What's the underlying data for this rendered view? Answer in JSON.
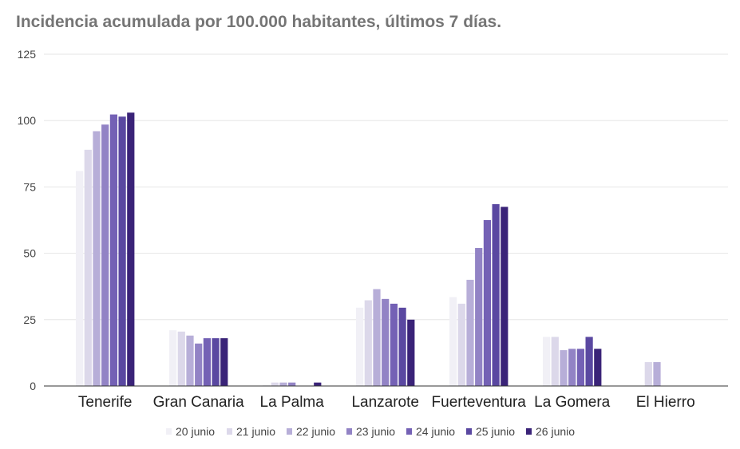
{
  "chart_data": {
    "type": "bar",
    "title": "Incidencia acumulada por 100.000 habitantes, últimos 7 días.",
    "categories": [
      "Tenerife",
      "Gran Canaria",
      "La Palma",
      "Lanzarote",
      "Fuerteventura",
      "La Gomera",
      "El Hierro"
    ],
    "ylim": [
      0,
      125
    ],
    "yticks": [
      "0",
      "25",
      "50",
      "75",
      "100",
      "125"
    ],
    "grid": true,
    "legend_position": "bottom",
    "series": [
      {
        "name": "20 junio",
        "color": "#f1f0f6",
        "values": [
          81,
          21,
          0.5,
          29.5,
          33.5,
          18.5,
          0
        ]
      },
      {
        "name": "21 junio",
        "color": "#dcd8ea",
        "values": [
          89,
          20.5,
          1.3,
          32.3,
          31,
          18.5,
          9
        ]
      },
      {
        "name": "22 junio",
        "color": "#b7aed8",
        "values": [
          96,
          19,
          1.3,
          36.5,
          40,
          13.5,
          9
        ]
      },
      {
        "name": "23 junio",
        "color": "#9283c5",
        "values": [
          98.5,
          16,
          1.3,
          32.8,
          52,
          14,
          0
        ]
      },
      {
        "name": "24 junio",
        "color": "#7461b5",
        "values": [
          102.3,
          18,
          0,
          31,
          62.5,
          14,
          0
        ]
      },
      {
        "name": "25 junio",
        "color": "#5a48a1",
        "values": [
          101.5,
          18,
          0,
          29.5,
          68.5,
          18.5,
          0
        ]
      },
      {
        "name": "26 junio",
        "color": "#3a2378",
        "values": [
          103,
          18,
          1.3,
          25,
          67.5,
          14,
          0
        ]
      }
    ]
  }
}
